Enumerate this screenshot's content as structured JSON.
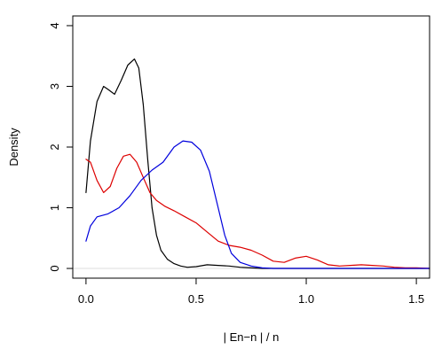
{
  "chart_data": {
    "type": "line",
    "title": "",
    "xlabel": "| En−n | / n",
    "ylabel": "Density",
    "xlim": [
      -0.06,
      1.56
    ],
    "ylim": [
      -0.16,
      4.16
    ],
    "x_ticks": [
      0.0,
      0.5,
      1.0,
      1.5
    ],
    "x_tick_labels": [
      "0.0",
      "0.5",
      "1.0",
      "1.5"
    ],
    "y_ticks": [
      0,
      1,
      2,
      3,
      4
    ],
    "y_tick_labels": [
      "0",
      "1",
      "2",
      "3",
      "4"
    ],
    "baseline": 0,
    "grid": false,
    "legend": "none",
    "series": [
      {
        "color": "#000000",
        "points": [
          [
            0.0,
            1.25
          ],
          [
            0.02,
            2.1
          ],
          [
            0.05,
            2.75
          ],
          [
            0.08,
            3.0
          ],
          [
            0.1,
            2.95
          ],
          [
            0.13,
            2.87
          ],
          [
            0.16,
            3.1
          ],
          [
            0.19,
            3.35
          ],
          [
            0.22,
            3.45
          ],
          [
            0.24,
            3.3
          ],
          [
            0.26,
            2.7
          ],
          [
            0.28,
            1.8
          ],
          [
            0.3,
            1.0
          ],
          [
            0.32,
            0.55
          ],
          [
            0.34,
            0.3
          ],
          [
            0.37,
            0.15
          ],
          [
            0.4,
            0.08
          ],
          [
            0.43,
            0.04
          ],
          [
            0.46,
            0.02
          ],
          [
            0.5,
            0.03
          ],
          [
            0.55,
            0.06
          ],
          [
            0.6,
            0.05
          ],
          [
            0.65,
            0.04
          ],
          [
            0.7,
            0.02
          ],
          [
            0.75,
            0.01
          ],
          [
            0.8,
            0.0
          ],
          [
            1.0,
            0.0
          ],
          [
            1.3,
            0.0
          ],
          [
            1.56,
            0.0
          ]
        ]
      },
      {
        "color": "#dd0000",
        "points": [
          [
            0.0,
            1.8
          ],
          [
            0.02,
            1.75
          ],
          [
            0.05,
            1.45
          ],
          [
            0.08,
            1.25
          ],
          [
            0.11,
            1.35
          ],
          [
            0.14,
            1.65
          ],
          [
            0.17,
            1.85
          ],
          [
            0.2,
            1.88
          ],
          [
            0.23,
            1.75
          ],
          [
            0.26,
            1.5
          ],
          [
            0.29,
            1.25
          ],
          [
            0.32,
            1.12
          ],
          [
            0.36,
            1.02
          ],
          [
            0.4,
            0.95
          ],
          [
            0.45,
            0.85
          ],
          [
            0.5,
            0.75
          ],
          [
            0.55,
            0.6
          ],
          [
            0.6,
            0.45
          ],
          [
            0.65,
            0.38
          ],
          [
            0.7,
            0.35
          ],
          [
            0.75,
            0.3
          ],
          [
            0.8,
            0.22
          ],
          [
            0.85,
            0.12
          ],
          [
            0.9,
            0.1
          ],
          [
            0.95,
            0.17
          ],
          [
            1.0,
            0.2
          ],
          [
            1.05,
            0.14
          ],
          [
            1.1,
            0.06
          ],
          [
            1.15,
            0.04
          ],
          [
            1.2,
            0.05
          ],
          [
            1.25,
            0.06
          ],
          [
            1.3,
            0.05
          ],
          [
            1.35,
            0.04
          ],
          [
            1.4,
            0.02
          ],
          [
            1.45,
            0.01
          ],
          [
            1.5,
            0.01
          ],
          [
            1.56,
            0.0
          ]
        ]
      },
      {
        "color": "#0000dd",
        "points": [
          [
            0.0,
            0.45
          ],
          [
            0.02,
            0.7
          ],
          [
            0.05,
            0.85
          ],
          [
            0.1,
            0.9
          ],
          [
            0.15,
            1.0
          ],
          [
            0.2,
            1.2
          ],
          [
            0.25,
            1.45
          ],
          [
            0.3,
            1.62
          ],
          [
            0.35,
            1.75
          ],
          [
            0.4,
            2.0
          ],
          [
            0.44,
            2.1
          ],
          [
            0.48,
            2.08
          ],
          [
            0.52,
            1.95
          ],
          [
            0.56,
            1.6
          ],
          [
            0.6,
            1.0
          ],
          [
            0.63,
            0.55
          ],
          [
            0.66,
            0.25
          ],
          [
            0.7,
            0.1
          ],
          [
            0.75,
            0.04
          ],
          [
            0.8,
            0.01
          ],
          [
            0.85,
            0.0
          ],
          [
            1.0,
            0.0
          ],
          [
            1.3,
            0.0
          ],
          [
            1.56,
            0.0
          ]
        ]
      }
    ]
  }
}
